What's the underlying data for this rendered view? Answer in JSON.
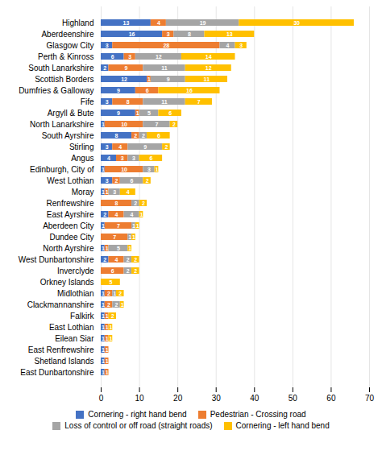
{
  "chart_data": {
    "type": "bar",
    "orientation": "horizontal",
    "stacked": true,
    "categories": [
      "Highland",
      "Aberdeenshire",
      "Glasgow City",
      "Perth & Kinross",
      "South Lanarkshire",
      "Scottish Borders",
      "Dumfries & Galloway",
      "Fife",
      "Argyll & Bute",
      "North Lanarkshire",
      "South Ayrshire",
      "Stirling",
      "Angus",
      "Edinburgh, City of",
      "West Lothian",
      "Moray",
      "Renfrewshire",
      "East Ayrshire",
      "Aberdeen City",
      "Dundee City",
      "North Ayrshire",
      "West Dunbartonshire",
      "Inverclyde",
      "Orkney Islands",
      "Midlothian",
      "Clackmannanshire",
      "Falkirk",
      "East Lothian",
      "Eilean Siar",
      "East Renfrewshire",
      "Shetland Islands",
      "East Dunbartonshire"
    ],
    "series": [
      {
        "name": "Cornering - right hand bend",
        "color": "#4472c4",
        "values": [
          13,
          16,
          3,
          6,
          2,
          12,
          9,
          3,
          9,
          1,
          8,
          3,
          4,
          1,
          3,
          1,
          0,
          2,
          1,
          0,
          1,
          2,
          0,
          0,
          1,
          1,
          1,
          1,
          1,
          1,
          1,
          1
        ]
      },
      {
        "name": "Pedestrian - Crossing road",
        "color": "#ed7d31",
        "values": [
          4,
          3,
          28,
          3,
          9,
          1,
          6,
          8,
          1,
          10,
          2,
          4,
          3,
          10,
          2,
          1,
          8,
          4,
          7,
          7,
          1,
          4,
          6,
          0,
          2,
          2,
          1,
          1,
          1,
          1,
          1,
          1
        ]
      },
      {
        "name": "Loss of control or off road (straight roads)",
        "color": "#a5a5a5",
        "values": [
          19,
          8,
          4,
          12,
          11,
          9,
          0,
          11,
          5,
          7,
          2,
          9,
          3,
          3,
          6,
          3,
          2,
          4,
          1,
          1,
          5,
          2,
          2,
          0,
          1,
          2,
          0,
          0,
          0,
          0,
          0,
          0
        ]
      },
      {
        "name": "Cornering - left hand bend",
        "color": "#ffc000",
        "values": [
          30,
          13,
          3,
          14,
          12,
          11,
          16,
          7,
          6,
          2,
          6,
          2,
          6,
          1,
          2,
          4,
          2,
          1,
          1,
          1,
          1,
          2,
          2,
          5,
          2,
          1,
          2,
          1,
          1,
          0,
          0,
          0
        ]
      }
    ],
    "xlim": [
      0,
      70
    ],
    "xticks": [
      0,
      10,
      20,
      30,
      40,
      50,
      60,
      70
    ],
    "grid": true,
    "data_labels": true,
    "legend": "bottom"
  }
}
